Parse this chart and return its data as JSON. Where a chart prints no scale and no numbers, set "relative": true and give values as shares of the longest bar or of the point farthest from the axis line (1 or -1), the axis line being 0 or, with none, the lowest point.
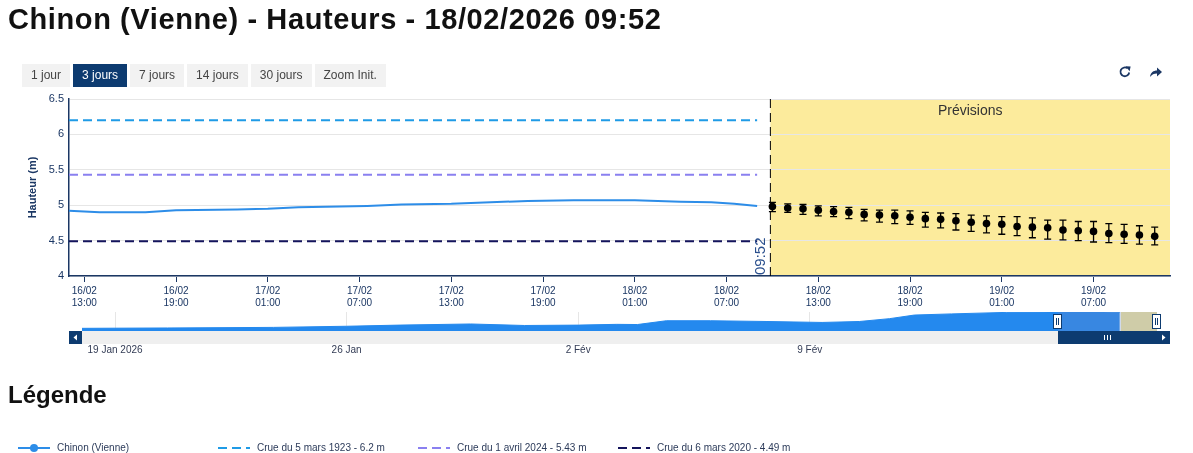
{
  "chart_data": [
    {
      "type": "line",
      "title": "Chinon (Vienne) - Hauteurs - 18/02/2026 09:52",
      "ylabel": "Hauteur (m)",
      "legend_title": "Légende",
      "annotations": [
        "1 jour",
        "3 jours",
        "7 jours",
        "14 jours",
        "30 jours",
        "Zoom Init."
      ],
      "xlim": [
        "2026-02-16T12:00",
        "2026-02-19T12:00"
      ],
      "xticks": [
        {
          "value": "2026-02-16T13:00",
          "label": "16/02\n13:00"
        },
        {
          "value": "2026-02-16T19:00",
          "label": "16/02\n19:00"
        },
        {
          "value": "2026-02-17T01:00",
          "label": "17/02\n01:00"
        },
        {
          "value": "2026-02-17T07:00",
          "label": "17/02\n07:00"
        },
        {
          "value": "2026-02-17T13:00",
          "label": "17/02\n13:00"
        },
        {
          "value": "2026-02-17T19:00",
          "label": "17/02\n19:00"
        },
        {
          "value": "2026-02-18T01:00",
          "label": "18/02\n01:00"
        },
        {
          "value": "2026-02-18T07:00",
          "label": "18/02\n07:00"
        },
        {
          "value": "2026-02-18T13:00",
          "label": "18/02\n13:00"
        },
        {
          "value": "2026-02-18T19:00",
          "label": "18/02\n19:00"
        },
        {
          "value": "2026-02-19T01:00",
          "label": "19/02\n01:00"
        },
        {
          "value": "2026-02-19T07:00",
          "label": "19/02\n07:00"
        }
      ],
      "ylim": [
        4,
        6.5
      ],
      "yticks": [
        4,
        4.5,
        5,
        5.5,
        6,
        6.5
      ],
      "grid": "y",
      "legend": "bottom",
      "series": [
        {
          "name": "Chinon (Vienne)",
          "color": "#2d8de8",
          "x": [
            "2026-02-16T12:00",
            "2026-02-16T14:00",
            "2026-02-16T17:00",
            "2026-02-16T19:00",
            "2026-02-16T23:00",
            "2026-02-17T01:00",
            "2026-02-17T03:00",
            "2026-02-17T07:30",
            "2026-02-17T09:45",
            "2026-02-17T13:00",
            "2026-02-17T18:00",
            "2026-02-17T21:00",
            "2026-02-18T01:00",
            "2026-02-18T04:00",
            "2026-02-18T06:00",
            "2026-02-18T07:30",
            "2026-02-18T09:00"
          ],
          "values": [
            4.92,
            4.9,
            4.9,
            4.93,
            4.94,
            4.95,
            4.97,
            4.99,
            5.01,
            5.02,
            5.06,
            5.07,
            5.07,
            5.05,
            5.04,
            5.02,
            4.99
          ]
        },
        {
          "type": "scatter",
          "marker": "circle",
          "color": "#000000",
          "x": [
            "2026-02-18T10:00",
            "2026-02-18T11:00",
            "2026-02-18T12:00",
            "2026-02-18T13:00",
            "2026-02-18T14:00",
            "2026-02-18T15:00",
            "2026-02-18T16:00",
            "2026-02-18T17:00",
            "2026-02-18T18:00",
            "2026-02-18T19:00",
            "2026-02-18T20:00",
            "2026-02-18T21:00",
            "2026-02-18T22:00",
            "2026-02-18T23:00",
            "2026-02-19T00:00",
            "2026-02-19T01:00",
            "2026-02-19T02:00",
            "2026-02-19T03:00",
            "2026-02-19T04:00",
            "2026-02-19T05:00",
            "2026-02-19T06:00",
            "2026-02-19T07:00",
            "2026-02-19T08:00",
            "2026-02-19T09:00",
            "2026-02-19T10:00",
            "2026-02-19T11:00"
          ],
          "values": [
            4.98,
            4.96,
            4.95,
            4.93,
            4.91,
            4.9,
            4.87,
            4.86,
            4.85,
            4.83,
            4.81,
            4.8,
            4.78,
            4.76,
            4.74,
            4.73,
            4.7,
            4.69,
            4.68,
            4.65,
            4.64,
            4.63,
            4.6,
            4.59,
            4.58,
            4.56
          ],
          "errors": [
            [
              4.91,
              5.04
            ],
            [
              4.9,
              5.02
            ],
            [
              4.87,
              5.01
            ],
            [
              4.85,
              4.99
            ],
            [
              4.84,
              4.98
            ],
            [
              4.81,
              4.97
            ],
            [
              4.78,
              4.94
            ],
            [
              4.76,
              4.93
            ],
            [
              4.74,
              4.93
            ],
            [
              4.73,
              4.92
            ],
            [
              4.69,
              4.9
            ],
            [
              4.68,
              4.89
            ],
            [
              4.65,
              4.88
            ],
            [
              4.63,
              4.86
            ],
            [
              4.61,
              4.85
            ],
            [
              4.59,
              4.84
            ],
            [
              4.57,
              4.84
            ],
            [
              4.54,
              4.82
            ],
            [
              4.52,
              4.79
            ],
            [
              4.51,
              4.79
            ],
            [
              4.5,
              4.77
            ],
            [
              4.48,
              4.77
            ],
            [
              4.47,
              4.74
            ],
            [
              4.46,
              4.73
            ],
            [
              4.45,
              4.71
            ],
            [
              4.44,
              4.69
            ]
          ]
        },
        {
          "name": "Crue du 5 mars 1923 - 6.2 m",
          "line_style": "dashed",
          "color": "#1f9be6",
          "x": [
            "2026-02-16T12:00",
            "2026-02-18T09:00"
          ],
          "values": [
            6.2,
            6.2
          ]
        },
        {
          "name": "Crue du 1 avril 2024 - 5.43 m",
          "line_style": "dashed",
          "color": "#8a80f0",
          "x": [
            "2026-02-16T12:00",
            "2026-02-18T09:00"
          ],
          "values": [
            5.43,
            5.43
          ]
        },
        {
          "name": "Crue du 6 mars 2020 - 4.49 m",
          "line_style": "dashed",
          "color": "#14145c",
          "x": [
            "2026-02-16T12:00",
            "2026-02-18T09:00"
          ],
          "values": [
            4.49,
            4.49
          ]
        }
      ],
      "bands": [
        {
          "axis": "x",
          "from": "2026-02-18T09:52",
          "to": "2026-02-19T12:00",
          "label": "Prévisions",
          "color": "#fceb9c"
        }
      ],
      "ref_lines": [
        {
          "axis": "x",
          "value": "2026-02-18T09:52",
          "label": "09:52",
          "color": "#000000",
          "line_style": "dashed"
        }
      ]
    },
    {
      "type": "area",
      "relative": true,
      "color": "#2489ee",
      "x": [
        "2026-01-18T00:00",
        "2026-01-20T14:00",
        "2026-01-23T19:00",
        "2026-01-26T00:00",
        "2026-01-27T14:00",
        "2026-01-29T18:00",
        "2026-01-31T09:00",
        "2026-02-02T00:00",
        "2026-02-03T04:00",
        "2026-02-03T19:00",
        "2026-02-04T16:00",
        "2026-02-06T00:00",
        "2026-02-07T17:00",
        "2026-02-09T09:00",
        "2026-02-10T12:00",
        "2026-02-11T10:00",
        "2026-02-12T04:00",
        "2026-02-13T07:00",
        "2026-02-14T23:00",
        "2026-02-16T08:00",
        "2026-02-17T21:00",
        "2026-02-18T09:00"
      ],
      "values": [
        0.14,
        0.16,
        0.19,
        0.25,
        0.31,
        0.37,
        0.29,
        0.31,
        0.35,
        0.34,
        0.54,
        0.54,
        0.5,
        0.45,
        0.5,
        0.65,
        0.84,
        0.9,
        0.98,
        1,
        1,
        0.98
      ],
      "xlim": [
        "2026-01-18T00:00",
        "2026-02-19T12:00"
      ],
      "xticks": [
        {
          "value": "2026-01-19",
          "label": "19 Jan 2026"
        },
        {
          "value": "2026-01-26",
          "label": "26 Jan"
        },
        {
          "value": "2026-02-02",
          "label": "2 Fév"
        },
        {
          "value": "2026-02-09",
          "label": "9 Fév"
        }
      ],
      "grid": "x",
      "bands": [
        {
          "axis": "x",
          "from": "2026-02-18T09:52",
          "to": "2026-02-19T12:00",
          "color": "#fceb9c"
        },
        {
          "axis": "x",
          "from": "2026-02-16T12:00",
          "to": "2026-02-19T12:00",
          "color": "#6685c2"
        }
      ]
    }
  ]
}
